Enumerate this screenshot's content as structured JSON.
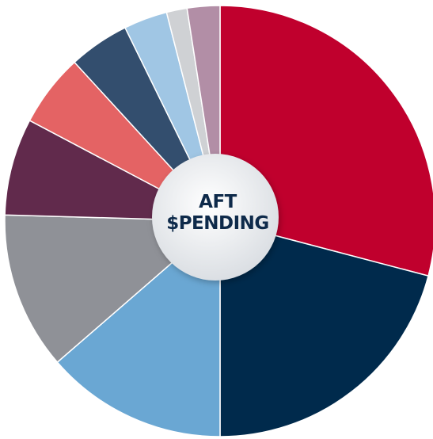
{
  "chart_data": {
    "type": "pie",
    "center_label": [
      "AFT",
      "$PENDING"
    ],
    "values": [
      32,
      23,
      15,
      13,
      8,
      6,
      5,
      3.6,
      1.7,
      2.7
    ],
    "colors": [
      "#c0002d",
      "#002a4c",
      "#6aa7d3",
      "#8f9197",
      "#612a4c",
      "#e46364",
      "#334e6e",
      "#a0c6e4",
      "#cfd1d4",
      "#b28ea6"
    ],
    "donut_hole_color": "#e6e9ed",
    "title": ""
  }
}
